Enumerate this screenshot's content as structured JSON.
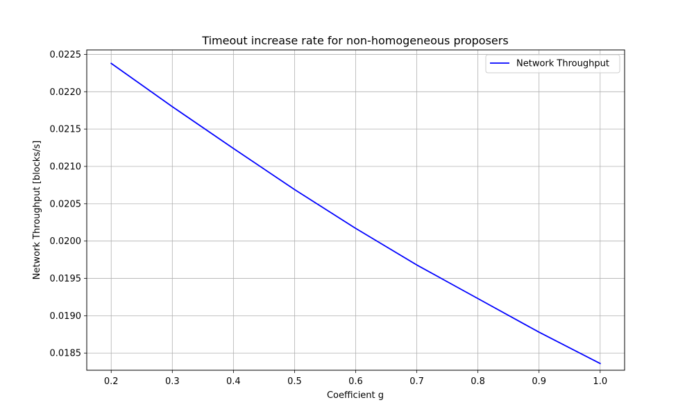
{
  "chart_data": {
    "type": "line",
    "title": "Timeout increase rate for non-homogeneous proposers",
    "xlabel": "Coefficient g",
    "ylabel": "Network Throughput [blocks/s]",
    "xlim": [
      0.16,
      1.04
    ],
    "ylim": [
      0.01827,
      0.02256
    ],
    "x_ticks": [
      0.2,
      0.3,
      0.4,
      0.5,
      0.6,
      0.7,
      0.8,
      0.9,
      1.0
    ],
    "x_tick_labels": [
      "0.2",
      "0.3",
      "0.4",
      "0.5",
      "0.6",
      "0.7",
      "0.8",
      "0.9",
      "1.0"
    ],
    "y_ticks": [
      0.0185,
      0.019,
      0.0195,
      0.02,
      0.0205,
      0.021,
      0.0215,
      0.022,
      0.0225
    ],
    "y_tick_labels": [
      "0.0185",
      "0.0190",
      "0.0195",
      "0.0200",
      "0.0205",
      "0.0210",
      "0.0215",
      "0.0220",
      "0.0225"
    ],
    "grid": true,
    "legend_position": "top-right",
    "series": [
      {
        "name": "Network Throughput",
        "color": "#0000ff",
        "x": [
          0.2,
          0.3,
          0.4,
          0.5,
          0.6,
          0.7,
          0.8,
          0.9,
          1.0
        ],
        "y": [
          0.02238,
          0.0218,
          0.02124,
          0.02069,
          0.02017,
          0.01968,
          0.01923,
          0.01878,
          0.01836
        ]
      }
    ]
  }
}
